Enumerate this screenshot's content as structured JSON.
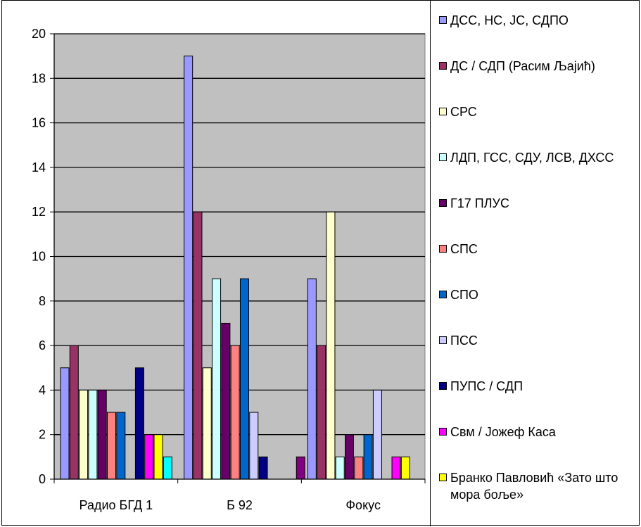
{
  "chart_data": {
    "type": "bar",
    "categories": [
      "Радио БГД 1",
      "Б 92",
      "Фокус"
    ],
    "ylim": [
      0,
      20
    ],
    "yticks": [
      0,
      2,
      4,
      6,
      8,
      10,
      12,
      14,
      16,
      18,
      20
    ],
    "grid": true,
    "legend_position": "right",
    "plot_background": "#c0c0c0",
    "series": [
      {
        "name": "ДСС, НС, ЈС, СДПО",
        "color": "#9999ff",
        "values": [
          5,
          19,
          9
        ]
      },
      {
        "name": "ДС / СДП (Расим Љајић)",
        "color": "#993366",
        "values": [
          6,
          12,
          6
        ]
      },
      {
        "name": "СРС",
        "color": "#ffffcc",
        "values": [
          4,
          5,
          12
        ]
      },
      {
        "name": "ЛДП, ГСС, СДУ, ЛСВ, ДХСС",
        "color": "#ccffff",
        "values": [
          4,
          9,
          1
        ]
      },
      {
        "name": "Г17 ПЛУС",
        "color": "#660066",
        "values": [
          4,
          7,
          2
        ]
      },
      {
        "name": "СПС",
        "color": "#ff8080",
        "values": [
          3,
          6,
          1
        ]
      },
      {
        "name": "СПО",
        "color": "#0066cc",
        "values": [
          3,
          9,
          2
        ]
      },
      {
        "name": "ПСС",
        "color": "#ccccff",
        "values": [
          0,
          3,
          4
        ]
      },
      {
        "name": "ПУПС / СДП",
        "color": "#000080",
        "values": [
          5,
          1,
          0
        ]
      },
      {
        "name": "Свм / Јожеф Каса",
        "color": "#ff00ff",
        "values": [
          2,
          0,
          1
        ]
      },
      {
        "name": "Бранко Павловић «Зато што мора боље»",
        "color": "#ffff00",
        "values": [
          2,
          0,
          1
        ]
      },
      {
        "name": "",
        "color": "#00ffff",
        "values": [
          1,
          0,
          0
        ]
      },
      {
        "name": "",
        "color": "#800080",
        "values": [
          0,
          1,
          0
        ]
      }
    ]
  }
}
